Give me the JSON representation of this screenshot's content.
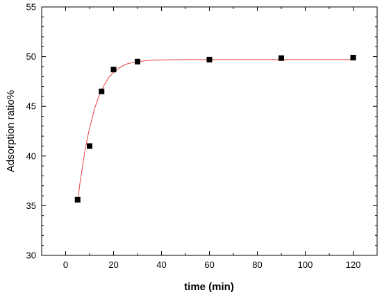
{
  "chart_data": {
    "type": "scatter",
    "title": "",
    "xlabel": "time (min)",
    "ylabel": "Adsorption ratio%",
    "xlim": [
      -10,
      130
    ],
    "ylim": [
      30,
      55
    ],
    "xticks": [
      0,
      20,
      40,
      60,
      80,
      100,
      120
    ],
    "yticks": [
      30,
      35,
      40,
      45,
      50,
      55
    ],
    "xtick_labels": [
      "0",
      "20",
      "40",
      "60",
      "80",
      "100",
      "120"
    ],
    "ytick_labels": [
      "30",
      "35",
      "40",
      "45",
      "50",
      "55"
    ],
    "grid": false,
    "series": [
      {
        "type": "scatter",
        "marker": "square",
        "color": "#000000",
        "x": [
          5,
          10,
          15,
          20,
          30,
          60,
          90,
          120
        ],
        "y": [
          35.6,
          41.0,
          46.5,
          48.7,
          49.5,
          49.7,
          49.85,
          49.9
        ]
      },
      {
        "type": "line",
        "fit": "exponential",
        "color": "#e8413c",
        "x": [
          5,
          6,
          7,
          8,
          9,
          10,
          12,
          14,
          16,
          18,
          20,
          22,
          24,
          26,
          28,
          30,
          35,
          40,
          50,
          60,
          80,
          100,
          120
        ],
        "y": [
          35.4,
          37.3,
          38.9,
          40.4,
          41.7,
          42.8,
          44.7,
          46.1,
          47.1,
          47.9,
          48.4,
          48.8,
          49.1,
          49.3,
          49.4,
          49.5,
          49.62,
          49.67,
          49.7,
          49.7,
          49.7,
          49.7,
          49.7
        ]
      }
    ]
  }
}
